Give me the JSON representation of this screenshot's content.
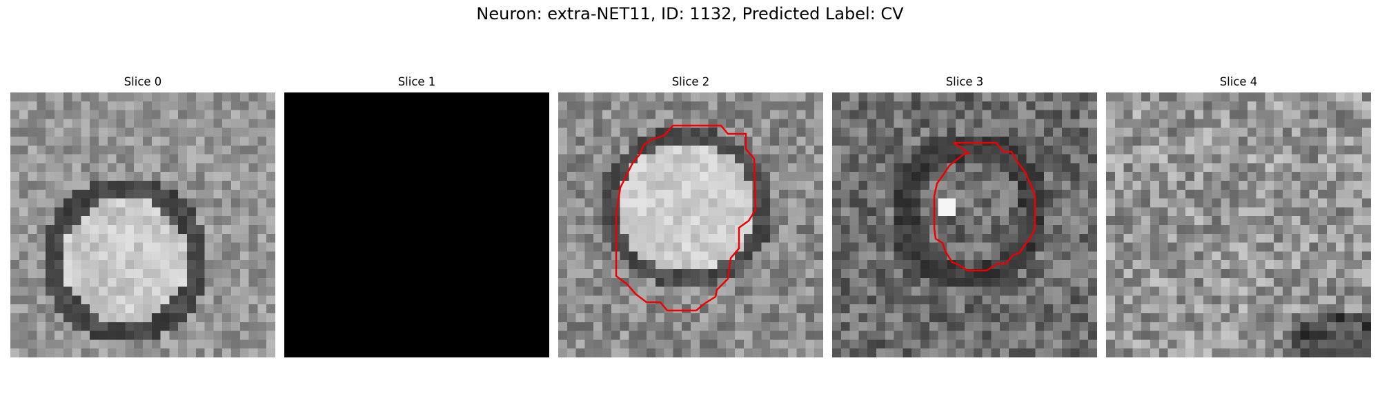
{
  "figure": {
    "title": "Neuron: extra-NET11, ID: 1132, Predicted Label: CV"
  },
  "panels": [
    {
      "title": "Slice 0",
      "has_contour": false,
      "blank": false
    },
    {
      "title": "Slice 1",
      "has_contour": false,
      "blank": true
    },
    {
      "title": "Slice 2",
      "has_contour": true,
      "blank": false
    },
    {
      "title": "Slice 3",
      "has_contour": true,
      "blank": false
    },
    {
      "title": "Slice 4",
      "has_contour": false,
      "blank": false
    }
  ],
  "colors": {
    "contour": "#ee0000",
    "background": "#ffffff"
  }
}
